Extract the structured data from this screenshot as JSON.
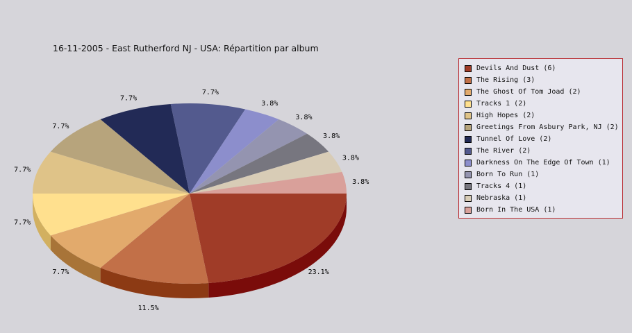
{
  "chart_data": {
    "type": "pie",
    "title": "16-11-2005 - East Rutherford NJ - USA:  Répartition par album",
    "legend_position": "right",
    "slices": [
      {
        "label": "Devils And Dust (6)",
        "value": 6,
        "percent_label": "23.1%",
        "color": "#a03c28",
        "side": "#7a0c0a"
      },
      {
        "label": "The Rising (3)",
        "value": 3,
        "percent_label": "11.5%",
        "color": "#c27048",
        "side": "#8c3a14"
      },
      {
        "label": "The Ghost Of Tom Joad (2)",
        "value": 2,
        "percent_label": "7.7%",
        "color": "#e2aa6c",
        "side": "#a87438"
      },
      {
        "label": "Tracks 1 (2)",
        "value": 2,
        "percent_label": "7.7%",
        "color": "#ffe08e",
        "side": "#d2b060"
      },
      {
        "label": "High Hopes (2)",
        "value": 2,
        "percent_label": "7.7%",
        "color": "#dfc388",
        "side": "#b09458"
      },
      {
        "label": "Greetings From Asbury Park, NJ (2)",
        "value": 2,
        "percent_label": "7.7%",
        "color": "#b7a47c",
        "side": "#887450"
      },
      {
        "label": "Tunnel Of Love (2)",
        "value": 2,
        "percent_label": "7.7%",
        "color": "#222a56",
        "side": "#101430"
      },
      {
        "label": "The River (2)",
        "value": 2,
        "percent_label": "7.7%",
        "color": "#535a8e",
        "side": "#30366a"
      },
      {
        "label": "Darkness On The Edge Of Town (1)",
        "value": 1,
        "percent_label": "3.8%",
        "color": "#8c8ecc",
        "side": "#6466a4"
      },
      {
        "label": "Born To Run (1)",
        "value": 1,
        "percent_label": "3.8%",
        "color": "#9494b0",
        "side": "#6c6c88"
      },
      {
        "label": "Tracks 4 (1)",
        "value": 1,
        "percent_label": "3.8%",
        "color": "#77767f",
        "side": "#55545c"
      },
      {
        "label": "Nebraska (1)",
        "value": 1,
        "percent_label": "3.8%",
        "color": "#d8ccb6",
        "side": "#b0a48e"
      },
      {
        "label": "Born In The USA (1)",
        "value": 1,
        "percent_label": "3.8%",
        "color": "#d9a09a",
        "side": "#b07870"
      }
    ]
  }
}
